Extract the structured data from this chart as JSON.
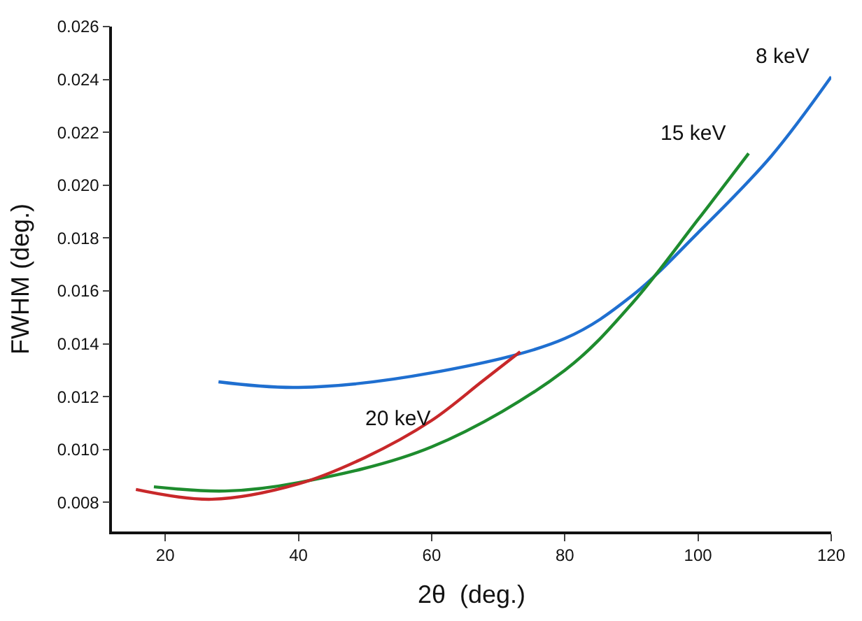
{
  "chart_data": {
    "type": "line",
    "xlabel": "2θ  (deg.)",
    "ylabel": "FWHM (deg.)",
    "xlim": [
      12,
      120
    ],
    "xticks": [
      20,
      40,
      60,
      80,
      100,
      120
    ],
    "ylim": [
      0.0069,
      0.026
    ],
    "yticks": [
      0.008,
      {
        "value": 0.01,
        "label": "0.010"
      },
      0.012,
      0.014,
      0.016,
      0.018,
      {
        "value": 0.02,
        "label": "0.020"
      },
      0.022,
      0.024,
      0.026
    ],
    "legend": false,
    "marker": "none",
    "line_style": "solid",
    "series": [
      {
        "name": "8 keV",
        "color": "#1f6fd0",
        "x": [
          28,
          40,
          60,
          80,
          90,
          100,
          111,
          120
        ],
        "values": [
          0.01256,
          0.01235,
          0.0129,
          0.0142,
          0.0158,
          0.0182,
          0.0211,
          0.0241
        ]
      },
      {
        "name": "15 keV",
        "color": "#1e8c2e",
        "x": [
          18.3,
          29,
          40,
          60,
          80,
          90,
          100,
          107.6
        ],
        "values": [
          0.00859,
          0.00843,
          0.00875,
          0.0101,
          0.013,
          0.0155,
          0.0187,
          0.0212
        ]
      },
      {
        "name": "20 keV",
        "color": "#c8282a",
        "x": [
          15.6,
          27,
          40,
          50,
          60,
          67.7,
          73.3
        ],
        "values": [
          0.00849,
          0.00812,
          0.0087,
          0.0097,
          0.0111,
          0.0126,
          0.0137
        ]
      }
    ]
  }
}
